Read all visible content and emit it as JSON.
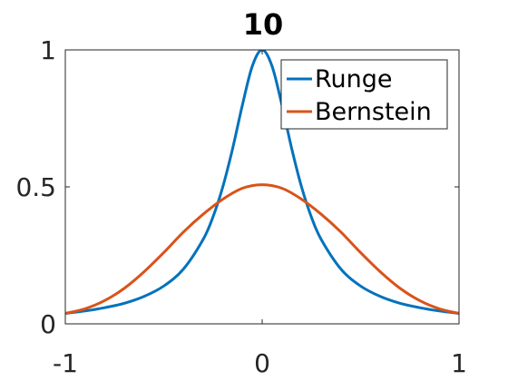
{
  "chart_data": {
    "type": "line",
    "title": "10",
    "xlabel": "",
    "ylabel": "",
    "xlim": [
      -1,
      1
    ],
    "ylim": [
      0,
      1
    ],
    "xticks": [
      -1,
      0,
      1
    ],
    "xtick_labels": [
      "-1",
      "0",
      "1"
    ],
    "yticks": [
      0,
      0.5,
      1
    ],
    "ytick_labels": [
      "0",
      "0.5",
      "1"
    ],
    "grid": false,
    "legend_position": "top-right",
    "series": [
      {
        "name": "Runge",
        "color": "#0072bd",
        "x": [
          -1,
          -0.9,
          -0.8,
          -0.7,
          -0.6,
          -0.5,
          -0.4,
          -0.3,
          -0.25,
          -0.2,
          -0.15,
          -0.1,
          -0.05,
          0,
          0.05,
          0.1,
          0.15,
          0.2,
          0.25,
          0.3,
          0.4,
          0.5,
          0.6,
          0.7,
          0.8,
          0.9,
          1
        ],
        "y": [
          0.038,
          0.047,
          0.059,
          0.075,
          0.1,
          0.138,
          0.2,
          0.308,
          0.39,
          0.5,
          0.64,
          0.8,
          0.941,
          1,
          0.941,
          0.8,
          0.64,
          0.5,
          0.39,
          0.308,
          0.2,
          0.138,
          0.1,
          0.075,
          0.059,
          0.047,
          0.038
        ]
      },
      {
        "name": "Bernstein",
        "color": "#d95319",
        "x": [
          -1,
          -0.9,
          -0.8,
          -0.7,
          -0.6,
          -0.5,
          -0.4,
          -0.3,
          -0.2,
          -0.1,
          0,
          0.1,
          0.2,
          0.3,
          0.4,
          0.5,
          0.6,
          0.7,
          0.8,
          0.9,
          1
        ],
        "y": [
          0.038,
          0.055,
          0.085,
          0.13,
          0.19,
          0.26,
          0.335,
          0.4,
          0.455,
          0.495,
          0.508,
          0.495,
          0.455,
          0.4,
          0.335,
          0.26,
          0.19,
          0.13,
          0.085,
          0.055,
          0.038
        ]
      }
    ]
  }
}
